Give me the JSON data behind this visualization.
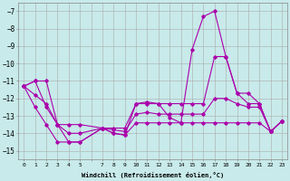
{
  "xlabel": "Windchill (Refroidissement éolien,°C)",
  "background_color": "#c8eaea",
  "grid_color": "#aaaaaa",
  "line_color": "#aa00aa",
  "hours": [
    0,
    1,
    2,
    3,
    4,
    5,
    7,
    8,
    9,
    10,
    11,
    12,
    13,
    14,
    15,
    16,
    17,
    18,
    19,
    20,
    21,
    22,
    23
  ],
  "windchill": [
    -11.3,
    -11.0,
    -12.5,
    -13.5,
    -14.5,
    -14.5,
    -13.7,
    -14.0,
    -14.1,
    -12.3,
    -12.2,
    -12.3,
    -13.1,
    -13.4,
    -9.2,
    -7.3,
    -7.0,
    -9.6,
    -11.7,
    -11.7,
    -12.3,
    -13.9,
    -13.3
  ],
  "min_line": [
    -11.3,
    -12.5,
    -13.5,
    -14.5,
    -14.5,
    -14.5,
    -13.7,
    -14.0,
    -14.1,
    -13.4,
    -13.4,
    -13.4,
    -13.4,
    -13.4,
    -13.4,
    -13.4,
    -13.4,
    -13.4,
    -13.4,
    -13.4,
    -13.4,
    -13.9,
    -13.3
  ],
  "max_line": [
    -11.3,
    -11.0,
    -11.0,
    -13.5,
    -13.5,
    -13.5,
    -13.7,
    -13.7,
    -13.7,
    -12.3,
    -12.3,
    -12.3,
    -12.3,
    -12.3,
    -12.3,
    -12.3,
    -9.6,
    -9.6,
    -11.7,
    -12.3,
    -12.3,
    -13.9,
    -13.3
  ],
  "avg_line": [
    -11.3,
    -11.8,
    -12.3,
    -13.5,
    -14.0,
    -14.0,
    -13.7,
    -13.8,
    -13.9,
    -12.9,
    -12.8,
    -12.9,
    -12.9,
    -12.9,
    -12.9,
    -12.9,
    -12.0,
    -12.0,
    -12.3,
    -12.5,
    -12.5,
    -13.9,
    -13.3
  ],
  "ylim": [
    -15.5,
    -6.5
  ],
  "yticks": [
    -15,
    -14,
    -13,
    -12,
    -11,
    -10,
    -9,
    -8,
    -7
  ],
  "all_hours": [
    0,
    1,
    2,
    3,
    4,
    5,
    6,
    7,
    8,
    9,
    10,
    11,
    12,
    13,
    14,
    15,
    16,
    17,
    18,
    19,
    20,
    21,
    22,
    23
  ],
  "xtick_labels": [
    "0",
    "1",
    "2",
    "3",
    "4",
    "5",
    "",
    "7",
    "8",
    "9",
    "10",
    "11",
    "12",
    "13",
    "14",
    "15",
    "16",
    "17",
    "18",
    "19",
    "20",
    "21",
    "22",
    "23"
  ]
}
